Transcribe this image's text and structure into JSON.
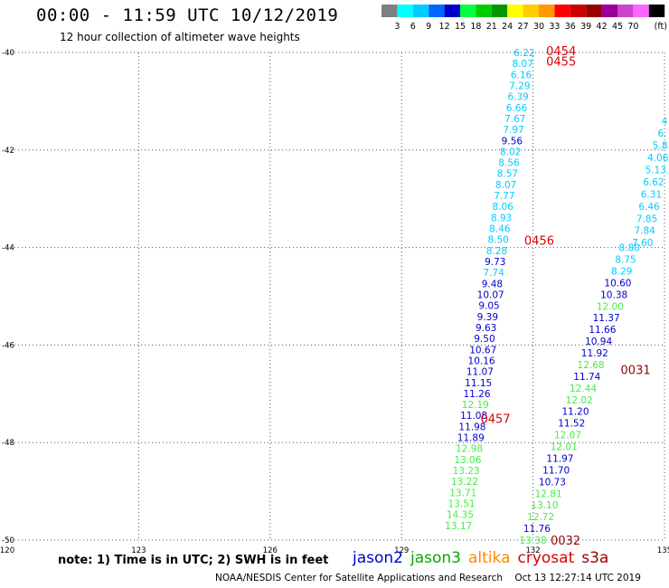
{
  "title": "00:00 - 11:59 UTC 10/12/2019",
  "subtitle": "12 hour collection of altimeter wave heights",
  "note": "note: 1) Time is in UTC; 2) SWH is in feet",
  "credit": "NOAA/NESDIS Center for Satellite Applications and Research    Oct 13 12:27:14 UTC 2019",
  "legend": [
    {
      "name": "jason2",
      "color": "#0000cc"
    },
    {
      "name": "jason3",
      "color": "#00aa00"
    },
    {
      "name": "altika",
      "color": "#ff8800"
    },
    {
      "name": "cryosat",
      "color": "#dd0000"
    },
    {
      "name": "s3a",
      "color": "#990000"
    }
  ],
  "colorbar": {
    "unit": "(ft)",
    "ticks": [
      "3",
      "6",
      "9",
      "12",
      "15",
      "18",
      "21",
      "24",
      "27",
      "30",
      "33",
      "36",
      "39",
      "42",
      "45",
      "70"
    ],
    "colors": [
      "#7f7f7f",
      "#00ffff",
      "#00ccff",
      "#0066ff",
      "#0000cc",
      "#00ff44",
      "#00cc00",
      "#009900",
      "#ffff00",
      "#ffcc00",
      "#ff9900",
      "#ff0000",
      "#cc0000",
      "#990000",
      "#990099",
      "#cc44cc",
      "#ff66ff",
      "#000000"
    ]
  },
  "chart_data": {
    "type": "scatter",
    "xlim": [
      120,
      135
    ],
    "ylim": [
      -50,
      -40
    ],
    "xticks": [
      "120",
      "123",
      "126",
      "129",
      "132",
      "135"
    ],
    "yticks": [
      "-40",
      "-42",
      "-44",
      "-46",
      "-48",
      "-50"
    ],
    "grid": true,
    "track_a": {
      "values": [
        "6.22",
        "8.07",
        "6.16",
        "7.29",
        "6.39",
        "6.66",
        "7.67",
        "7.97",
        "9.56",
        "8.02",
        "8.56",
        "8.57",
        "8.07",
        "7.77",
        "8.06",
        "8.93",
        "8.46",
        "8.50",
        "8.28",
        "9.73",
        "7.74",
        "9.48",
        "10.07",
        "9.05",
        "9.39",
        "9.63",
        "9.50",
        "10.67",
        "10.16",
        "11.07",
        "11.15",
        "11.26",
        "12.19",
        "11.08",
        "11.98",
        "11.89",
        "12.98",
        "13.06",
        "13.23",
        "13.22",
        "13.71",
        "13.51",
        "14.35",
        "13.17"
      ],
      "lat_start": -40.0,
      "lat_end": -49.7,
      "lon_start": 131.8,
      "lon_end": 130.3
    },
    "track_b": {
      "values": [
        "8.80",
        "8.75",
        "8.29",
        "10.60",
        "10.38",
        "12.00",
        "11.37",
        "11.66",
        "10.94",
        "11.92",
        "12.68",
        "11.74",
        "12.44",
        "12.02",
        "11.20",
        "11.52",
        "12.07",
        "12.01",
        "11.97",
        "11.70",
        "10.73",
        "12.81",
        "13.10",
        "12.72",
        "11.76",
        "13.38"
      ],
      "lat_start": -44.0,
      "lat_end": -50.0,
      "lon_start": 134.2,
      "lon_end": 132.0
    },
    "track_c": {
      "values": [
        "4",
        "6.",
        "5.8",
        "4.06",
        "5.13",
        "6.62",
        "6.31",
        "6.46",
        "7.85",
        "7.84",
        "7.60"
      ],
      "lat_start": -41.4,
      "lat_end": -43.9,
      "lon_start": 135.0,
      "lon_end": 134.5
    },
    "time_labels": [
      {
        "text": "0454",
        "lon": 132.3,
        "lat": -39.96,
        "sat": "cryosat"
      },
      {
        "text": "0455",
        "lon": 132.3,
        "lat": -40.18,
        "sat": "cryosat"
      },
      {
        "text": "0456",
        "lon": 131.8,
        "lat": -43.85,
        "sat": "cryosat"
      },
      {
        "text": "0457",
        "lon": 130.8,
        "lat": -47.5,
        "sat": "cryosat"
      },
      {
        "text": "0031",
        "lon": 134.0,
        "lat": -46.5,
        "sat": "s3a"
      },
      {
        "text": "0032",
        "lon": 132.4,
        "lat": -50.0,
        "sat": "s3a"
      }
    ]
  }
}
